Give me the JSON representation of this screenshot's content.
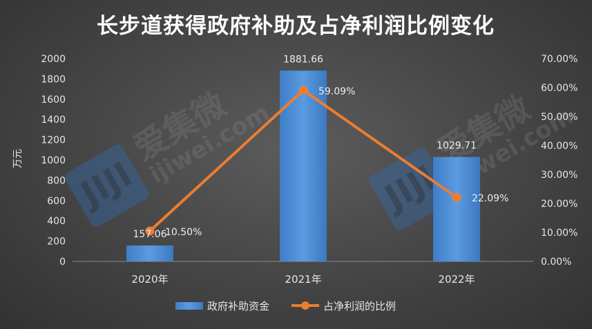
{
  "chart_data": {
    "type": "bar",
    "title": "长步道获得政府补助及占净利润比例变化",
    "ylabel": "万元",
    "categories": [
      "2020年",
      "2021年",
      "2022年"
    ],
    "ylim": [
      0,
      2000
    ],
    "y_ticks": [
      "2000",
      "1800",
      "1600",
      "1400",
      "1200",
      "1000",
      "800",
      "600",
      "400",
      "200",
      "0"
    ],
    "y2lim": [
      0,
      70
    ],
    "y2_ticks": [
      "70.00%",
      "60.00%",
      "50.00%",
      "40.00%",
      "30.00%",
      "20.00%",
      "10.00%",
      "0.00%"
    ],
    "grid": false,
    "legend_position": "bottom",
    "series": [
      {
        "name": "政府补助资金",
        "type": "bar",
        "axis": "left",
        "values": [
          157.06,
          1881.66,
          1029.71
        ],
        "labels": [
          "157.06",
          "1881.66",
          "1029.71"
        ],
        "color": "#4e8fd6"
      },
      {
        "name": "占净利润的比例",
        "type": "line",
        "axis": "right",
        "values": [
          10.5,
          59.09,
          22.09
        ],
        "labels": [
          "10.50%",
          "59.09%",
          "22.09%"
        ],
        "color": "#ed7d31"
      }
    ]
  },
  "watermark": {
    "logo": "JIJI",
    "text_cn": "爱集微",
    "text_url": "ijiwei.com",
    "color": "#2f6fb8"
  }
}
